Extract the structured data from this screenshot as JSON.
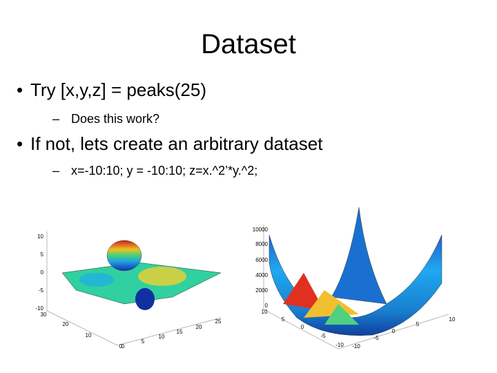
{
  "title": "Dataset",
  "bullets": [
    {
      "level": 1,
      "text": "Try [x,y,z] = peaks(25)"
    },
    {
      "level": 2,
      "text": "Does this work?"
    },
    {
      "level": 1,
      "text": "If not, lets create an arbitrary dataset"
    },
    {
      "level": 2,
      "text": "x=-10:10; y = -10:10; z=x.^2’*y.^2;"
    }
  ],
  "figures": [
    {
      "z_ticks": [
        "10",
        "5",
        "0",
        "-5",
        "-10"
      ],
      "y_ticks": [
        "30",
        "20",
        "10",
        "0"
      ],
      "x_ticks": [
        "0",
        "5",
        "10",
        "15",
        "20",
        "25"
      ]
    },
    {
      "z_ticks": [
        "10000",
        "8000",
        "6000",
        "4000",
        "2000",
        "0"
      ],
      "y_ticks": [
        "10",
        "5",
        "0",
        "-5",
        "-10"
      ],
      "x_ticks": [
        "-10",
        "-5",
        "0",
        "5",
        "10"
      ]
    }
  ]
}
